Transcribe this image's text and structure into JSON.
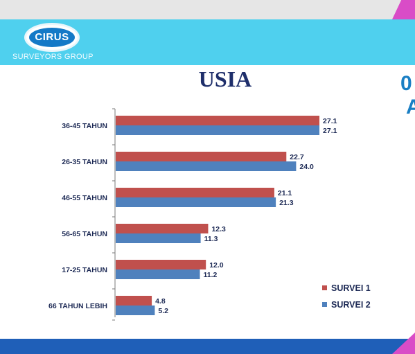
{
  "header": {
    "logo_text": "CIRUS",
    "logo_subtext": "SURVEYORS GROUP"
  },
  "edge_text": [
    "0",
    "A"
  ],
  "colors": {
    "header_band": "#4fd0ee",
    "bottom_band": "#1f5fb8",
    "title": "#1f2f6b",
    "survei1": "#c0504d",
    "survei2": "#4f81bd"
  },
  "chart_data": {
    "type": "bar",
    "orientation": "horizontal",
    "title": "USIA",
    "categories": [
      "36-45 TAHUN",
      "26-35 TAHUN",
      "46-55 TAHUN",
      "56-65 TAHUN",
      "17-25 TAHUN",
      "66 TAHUN LEBIH"
    ],
    "series": [
      {
        "name": "SURVEI 1",
        "color": "#c0504d",
        "values": [
          27.1,
          22.7,
          21.1,
          12.3,
          12.0,
          4.8
        ]
      },
      {
        "name": "SURVEI 2",
        "color": "#4f81bd",
        "values": [
          27.1,
          24.0,
          21.3,
          11.3,
          11.2,
          5.2
        ]
      }
    ],
    "value_labels": [
      [
        "27.1",
        "22.7",
        "21.1",
        "12.3",
        "12.0",
        "4.8"
      ],
      [
        "27.1",
        "24.0",
        "21.3",
        "11.3",
        "11.2",
        "5.2"
      ]
    ],
    "xlim": [
      0,
      30
    ],
    "grid": false,
    "legend_position": "bottom-right"
  }
}
